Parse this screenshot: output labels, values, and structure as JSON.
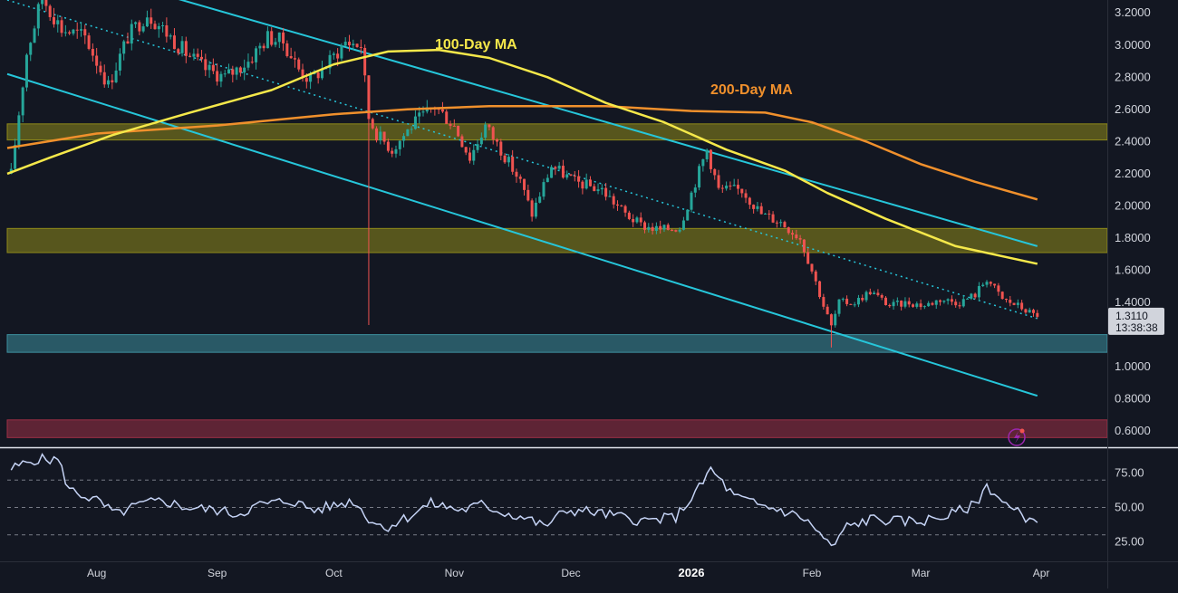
{
  "chart_data": [
    {
      "type": "candlestick",
      "panel": "price",
      "y_axis": {
        "range": [
          0.5,
          3.28
        ],
        "tick_labels": [
          "3.2000",
          "3.0000",
          "2.8000",
          "2.6000",
          "2.4000",
          "2.2000",
          "2.0000",
          "1.8000",
          "1.6000",
          "1.4000",
          "1.0000",
          "0.8000",
          "0.6000"
        ],
        "tick_values": [
          3.2,
          3.0,
          2.8,
          2.6,
          2.4,
          2.2,
          2.0,
          1.8,
          1.6,
          1.4,
          1.0,
          0.8,
          0.6
        ],
        "position": "right"
      },
      "x_axis": {
        "tick_labels": [
          "Aug",
          "Sep",
          "Oct",
          "Nov",
          "Dec",
          "2026",
          "Feb",
          "Mar",
          "Apr"
        ],
        "tick_dates": [
          "2025-08-01",
          "2025-09-01",
          "2025-10-01",
          "2025-11-01",
          "2025-12-01",
          "2026-01-01",
          "2026-02-01",
          "2026-03-01",
          "2026-04-01"
        ],
        "range": [
          "2025-07-09",
          "2026-04-18"
        ],
        "bold_labels": [
          "2026"
        ]
      },
      "anchors": [
        [
          "2025-07-10",
          2.2
        ],
        [
          "2025-07-14",
          2.95
        ],
        [
          "2025-07-18",
          3.3
        ],
        [
          "2025-07-23",
          3.1
        ],
        [
          "2025-07-29",
          3.05
        ],
        [
          "2025-08-04",
          2.75
        ],
        [
          "2025-08-09",
          3.05
        ],
        [
          "2025-08-14",
          3.2
        ],
        [
          "2025-08-18",
          3.1
        ],
        [
          "2025-08-24",
          2.95
        ],
        [
          "2025-08-29",
          2.85
        ],
        [
          "2025-09-03",
          2.8
        ],
        [
          "2025-09-09",
          2.9
        ],
        [
          "2025-09-14",
          3.05
        ],
        [
          "2025-09-18",
          3.02
        ],
        [
          "2025-09-22",
          2.85
        ],
        [
          "2025-09-25",
          2.78
        ],
        [
          "2025-09-30",
          2.9
        ],
        [
          "2025-10-04",
          3.02
        ],
        [
          "2025-10-08",
          3.0
        ],
        [
          "2025-10-10",
          2.55
        ],
        [
          "2025-10-12",
          2.45
        ],
        [
          "2025-10-16",
          2.35
        ],
        [
          "2025-10-21",
          2.5
        ],
        [
          "2025-10-27",
          2.62
        ],
        [
          "2025-11-01",
          2.5
        ],
        [
          "2025-11-05",
          2.3
        ],
        [
          "2025-11-09",
          2.5
        ],
        [
          "2025-11-13",
          2.35
        ],
        [
          "2025-11-18",
          2.15
        ],
        [
          "2025-11-21",
          1.95
        ],
        [
          "2025-11-26",
          2.25
        ],
        [
          "2025-12-02",
          2.15
        ],
        [
          "2025-12-09",
          2.1
        ],
        [
          "2025-12-15",
          1.95
        ],
        [
          "2025-12-19",
          1.88
        ],
        [
          "2025-12-24",
          1.85
        ],
        [
          "2025-12-29",
          1.87
        ],
        [
          "2026-01-02",
          2.15
        ],
        [
          "2026-01-05",
          2.35
        ],
        [
          "2026-01-08",
          2.1
        ],
        [
          "2026-01-14",
          2.1
        ],
        [
          "2026-01-19",
          1.95
        ],
        [
          "2026-01-24",
          1.9
        ],
        [
          "2026-01-29",
          1.8
        ],
        [
          "2026-02-01",
          1.6
        ],
        [
          "2026-02-04",
          1.38
        ],
        [
          "2026-02-06",
          1.25
        ],
        [
          "2026-02-08",
          1.4
        ],
        [
          "2026-02-12",
          1.4
        ],
        [
          "2026-02-16",
          1.47
        ],
        [
          "2026-02-21",
          1.38
        ],
        [
          "2026-02-26",
          1.4
        ],
        [
          "2026-03-02",
          1.38
        ],
        [
          "2026-03-06",
          1.42
        ],
        [
          "2026-03-11",
          1.4
        ],
        [
          "2026-03-15",
          1.45
        ],
        [
          "2026-03-18",
          1.55
        ],
        [
          "2026-03-22",
          1.42
        ],
        [
          "2026-03-26",
          1.38
        ],
        [
          "2026-03-31",
          1.311
        ]
      ],
      "ma_100": {
        "label": "100-Day MA",
        "color": "#f5e84a",
        "points": [
          [
            "2025-07-09",
            2.2
          ],
          [
            "2025-07-20",
            2.3
          ],
          [
            "2025-08-05",
            2.44
          ],
          [
            "2025-08-25",
            2.58
          ],
          [
            "2025-09-15",
            2.72
          ],
          [
            "2025-10-01",
            2.88
          ],
          [
            "2025-10-15",
            2.96
          ],
          [
            "2025-10-28",
            2.97
          ],
          [
            "2025-11-10",
            2.92
          ],
          [
            "2025-11-25",
            2.8
          ],
          [
            "2025-12-10",
            2.64
          ],
          [
            "2025-12-25",
            2.52
          ],
          [
            "2026-01-10",
            2.35
          ],
          [
            "2026-01-25",
            2.22
          ],
          [
            "2026-02-05",
            2.08
          ],
          [
            "2026-02-20",
            1.92
          ],
          [
            "2026-03-10",
            1.75
          ],
          [
            "2026-03-31",
            1.64
          ]
        ]
      },
      "ma_200": {
        "label": "200-Day MA",
        "color": "#f0902c",
        "points": [
          [
            "2025-07-09",
            2.36
          ],
          [
            "2025-08-01",
            2.45
          ],
          [
            "2025-09-01",
            2.5
          ],
          [
            "2025-10-01",
            2.57
          ],
          [
            "2025-10-20",
            2.6
          ],
          [
            "2025-11-10",
            2.62
          ],
          [
            "2025-12-10",
            2.62
          ],
          [
            "2026-01-01",
            2.59
          ],
          [
            "2026-01-20",
            2.58
          ],
          [
            "2026-02-01",
            2.52
          ],
          [
            "2026-02-15",
            2.4
          ],
          [
            "2026-03-01",
            2.26
          ],
          [
            "2026-03-15",
            2.15
          ],
          [
            "2026-03-31",
            2.04
          ]
        ]
      },
      "channel_upper": {
        "color": "#26c6da",
        "points": [
          [
            "2025-08-20",
            3.3
          ],
          [
            "2026-03-31",
            1.75
          ]
        ]
      },
      "channel_lower": {
        "color": "#26c6da",
        "points": [
          [
            "2025-07-09",
            2.82
          ],
          [
            "2026-03-31",
            0.82
          ]
        ]
      },
      "midline_dotted": {
        "color": "#26c6da",
        "points": [
          [
            "2025-07-09",
            3.28
          ],
          [
            "2026-03-31",
            1.3
          ]
        ]
      },
      "zones": [
        {
          "from": 2.41,
          "to": 2.51,
          "color": "#8f8a1a"
        },
        {
          "from": 1.71,
          "to": 1.86,
          "color": "#8f8a1a"
        },
        {
          "from": 1.09,
          "to": 1.2,
          "color": "#3c8f9e"
        },
        {
          "from": 0.56,
          "to": 0.67,
          "color": "#9c2f45"
        }
      ],
      "current_price": {
        "value": "1.3110",
        "countdown": "13:38:38",
        "level": 1.311
      }
    },
    {
      "type": "line",
      "panel": "rsi",
      "y_axis": {
        "range": [
          12,
          92
        ],
        "tick_labels": [
          "75.00",
          "50.00",
          "25.00"
        ],
        "tick_values": [
          75,
          50,
          25
        ],
        "guide_levels": [
          70,
          50,
          30
        ]
      },
      "color": "#c5d3f5",
      "anchors": [
        [
          "2025-07-10",
          78
        ],
        [
          "2025-07-16",
          85
        ],
        [
          "2025-07-22",
          85
        ],
        [
          "2025-07-25",
          63
        ],
        [
          "2025-08-01",
          55
        ],
        [
          "2025-08-06",
          45
        ],
        [
          "2025-08-12",
          52
        ],
        [
          "2025-08-18",
          55
        ],
        [
          "2025-08-24",
          50
        ],
        [
          "2025-09-01",
          48
        ],
        [
          "2025-09-06",
          45
        ],
        [
          "2025-09-12",
          52
        ],
        [
          "2025-09-20",
          55
        ],
        [
          "2025-09-26",
          48
        ],
        [
          "2025-10-02",
          52
        ],
        [
          "2025-10-06",
          55
        ],
        [
          "2025-10-10",
          42
        ],
        [
          "2025-10-14",
          35
        ],
        [
          "2025-10-20",
          43
        ],
        [
          "2025-10-26",
          53
        ],
        [
          "2025-11-03",
          48
        ],
        [
          "2025-11-08",
          52
        ],
        [
          "2025-11-14",
          46
        ],
        [
          "2025-11-20",
          42
        ],
        [
          "2025-11-24",
          36
        ],
        [
          "2025-11-30",
          48
        ],
        [
          "2025-12-06",
          47
        ],
        [
          "2025-12-14",
          43
        ],
        [
          "2025-12-20",
          40
        ],
        [
          "2025-12-28",
          43
        ],
        [
          "2026-01-03",
          64
        ],
        [
          "2026-01-06",
          78
        ],
        [
          "2026-01-12",
          58
        ],
        [
          "2026-01-18",
          52
        ],
        [
          "2026-01-24",
          48
        ],
        [
          "2026-01-30",
          42
        ],
        [
          "2026-02-04",
          28
        ],
        [
          "2026-02-06",
          20
        ],
        [
          "2026-02-10",
          36
        ],
        [
          "2026-02-17",
          42
        ],
        [
          "2026-02-22",
          40
        ],
        [
          "2026-03-01",
          40
        ],
        [
          "2026-03-08",
          44
        ],
        [
          "2026-03-15",
          52
        ],
        [
          "2026-03-18",
          66
        ],
        [
          "2026-03-24",
          49
        ],
        [
          "2026-03-31",
          39
        ]
      ]
    }
  ]
}
